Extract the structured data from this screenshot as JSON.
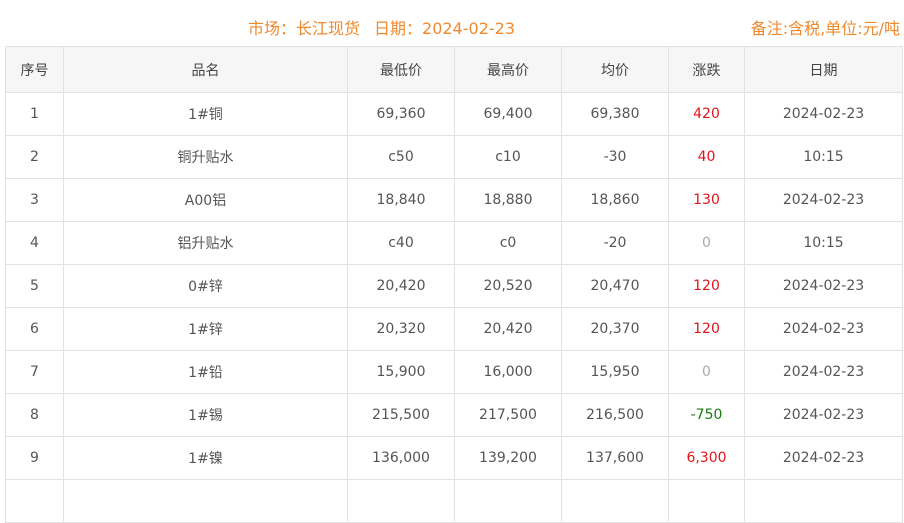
{
  "header": {
    "market": "市场：长江现货",
    "date": "日期：2024-02-23",
    "note": "备注:含税,单位:元/吨"
  },
  "columns": [
    "序号",
    "品名",
    "最低价",
    "最高价",
    "均价",
    "涨跌",
    "日期"
  ],
  "colors": {
    "up": "#e0151b",
    "down": "#1c7a12",
    "flat": "#aaaaaa",
    "accent": "#f0892c"
  },
  "rows": [
    {
      "no": "1",
      "name": "1#铜",
      "low": "69,360",
      "high": "69,400",
      "avg": "69,380",
      "change": "420",
      "trend": "up",
      "date": "2024-02-23"
    },
    {
      "no": "2",
      "name": "铜升贴水",
      "low": "c50",
      "high": "c10",
      "avg": "-30",
      "change": "40",
      "trend": "up",
      "date": "10:15"
    },
    {
      "no": "3",
      "name": "A00铝",
      "low": "18,840",
      "high": "18,880",
      "avg": "18,860",
      "change": "130",
      "trend": "up",
      "date": "2024-02-23"
    },
    {
      "no": "4",
      "name": "铝升贴水",
      "low": "c40",
      "high": "c0",
      "avg": "-20",
      "change": "0",
      "trend": "flat",
      "date": "10:15"
    },
    {
      "no": "5",
      "name": "0#锌",
      "low": "20,420",
      "high": "20,520",
      "avg": "20,470",
      "change": "120",
      "trend": "up",
      "date": "2024-02-23"
    },
    {
      "no": "6",
      "name": "1#锌",
      "low": "20,320",
      "high": "20,420",
      "avg": "20,370",
      "change": "120",
      "trend": "up",
      "date": "2024-02-23"
    },
    {
      "no": "7",
      "name": "1#铅",
      "low": "15,900",
      "high": "16,000",
      "avg": "15,950",
      "change": "0",
      "trend": "flat",
      "date": "2024-02-23"
    },
    {
      "no": "8",
      "name": "1#锡",
      "low": "215,500",
      "high": "217,500",
      "avg": "216,500",
      "change": "-750",
      "trend": "down",
      "date": "2024-02-23"
    },
    {
      "no": "9",
      "name": "1#镍",
      "low": "136,000",
      "high": "139,200",
      "avg": "137,600",
      "change": "6,300",
      "trend": "up",
      "date": "2024-02-23"
    }
  ]
}
